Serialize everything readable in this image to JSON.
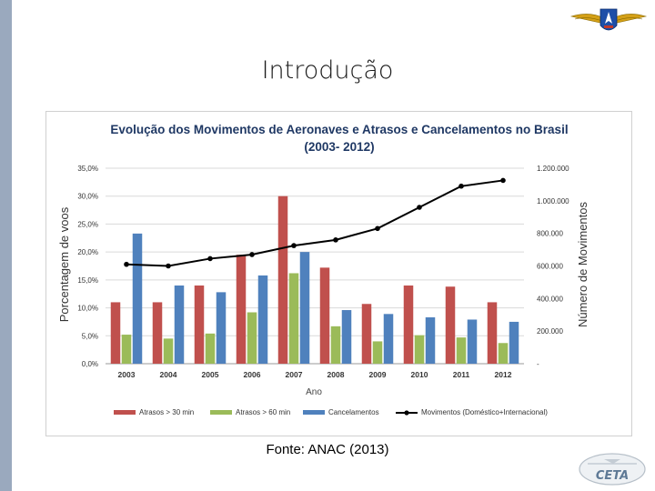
{
  "slide": {
    "title": "Introdução",
    "source": "Fonte: ANAC (2013)",
    "logo_text": "CETA"
  },
  "colors": {
    "atrasos30": "#c0504d",
    "atrasos60": "#9bbb59",
    "cancelamentos": "#4f81bd",
    "movimentos": "#000000",
    "title": "#1f3864"
  },
  "chart_data": {
    "type": "bar",
    "title_line1": "Evolução dos Movimentos de Aeronaves e Atrasos e Cancelamentos no Brasil",
    "title_line2": "(2003- 2012)",
    "xlabel": "Ano",
    "ylabel_left": "Porcentagem de voos",
    "ylabel_right": "Número de Movimentos",
    "categories": [
      "2003",
      "2004",
      "2005",
      "2006",
      "2007",
      "2008",
      "2009",
      "2010",
      "2011",
      "2012"
    ],
    "ylim_left": [
      0,
      35
    ],
    "yticks_left": [
      "0,0%",
      "5,0%",
      "10,0%",
      "15,0%",
      "20,0%",
      "25,0%",
      "30,0%",
      "35,0%"
    ],
    "ylim_right": [
      0,
      1200000
    ],
    "yticks_right": [
      "-",
      "200.000",
      "400.000",
      "600.000",
      "800.000",
      "1.000.000",
      "1.200.000"
    ],
    "grid": true,
    "legend_position": "bottom",
    "series": [
      {
        "name": "Atrasos > 30 min",
        "type": "bar",
        "axis": "left",
        "values": [
          11.0,
          11.0,
          14.0,
          19.5,
          30.0,
          17.2,
          10.7,
          14.0,
          13.8,
          11.0
        ]
      },
      {
        "name": "Atrasos > 60 min",
        "type": "bar",
        "axis": "left",
        "values": [
          5.2,
          4.5,
          5.4,
          9.2,
          16.2,
          6.7,
          4.0,
          5.1,
          4.7,
          3.7
        ]
      },
      {
        "name": "Cancelamentos",
        "type": "bar",
        "axis": "left",
        "values": [
          23.3,
          14.0,
          12.8,
          15.8,
          20.0,
          9.6,
          8.9,
          8.3,
          7.9,
          7.5
        ]
      },
      {
        "name": "Movimentos (Doméstico+Internacional)",
        "type": "line",
        "axis": "right",
        "values": [
          610000,
          600000,
          645000,
          670000,
          725000,
          760000,
          830000,
          960000,
          1090000,
          1125000
        ]
      }
    ]
  }
}
